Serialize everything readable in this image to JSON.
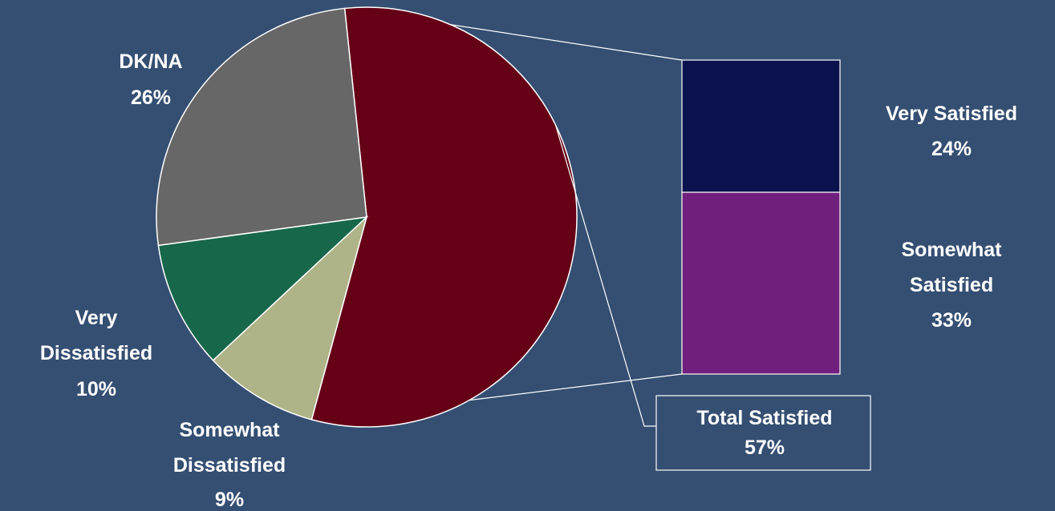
{
  "chart_data": {
    "type": "pie",
    "subtype": "pie-of-bar",
    "slices": [
      {
        "label_lines": [
          "Total Satisfied",
          "57%"
        ],
        "value": 57,
        "color": "#650016",
        "breakout": true
      },
      {
        "label_lines": [
          "Somewhat",
          "Dissatisfied",
          "9%"
        ],
        "value": 9,
        "color": "#aeb487"
      },
      {
        "label_lines": [
          "Very",
          "Dissatisfied",
          "10%"
        ],
        "value": 10,
        "color": "#17684a"
      },
      {
        "label_lines": [
          "DK/NA",
          "26%"
        ],
        "value": 26,
        "color": "#676767"
      }
    ],
    "breakout_bar": {
      "segments": [
        {
          "label_lines": [
            "Very Satisfied",
            "24%"
          ],
          "value": 24,
          "color": "#0b124d"
        },
        {
          "label_lines": [
            "Somewhat",
            "Satisfied",
            "33%"
          ],
          "value": 33,
          "color": "#70207c"
        }
      ]
    }
  },
  "style": {
    "background": "#354f72",
    "outline_color": "#ffffff",
    "text_color": "#ffffff"
  }
}
